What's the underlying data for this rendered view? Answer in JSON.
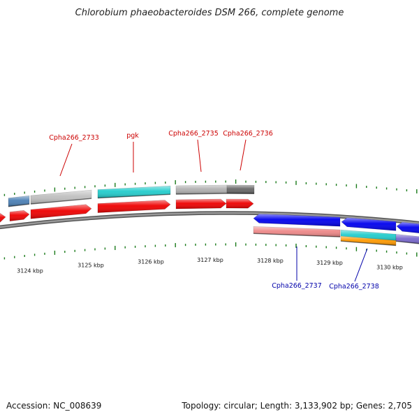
{
  "title": "Chlorobium phaeobacteroides DSM 266, complete genome",
  "footer": {
    "accession": "Accession: NC_008639",
    "summary": "Topology: circular; Length: 3,133,902 bp; Genes: 2,705"
  },
  "colors": {
    "backbone": "#7a7a7a",
    "tick": "#1a7a1a",
    "forward_label": "#cc0000",
    "reverse_label": "#0000aa",
    "cds_forward": "#ee0000",
    "cds_reverse": "#0000ee"
  },
  "axis_ticks": [
    "3124 kbp",
    "3125 kbp",
    "3126 kbp",
    "3127 kbp",
    "3128 kbp",
    "3129 kbp",
    "3130 kbp"
  ],
  "forward_labels": [
    "Cpha266_2733",
    "pgk",
    "Cpha266_2735",
    "Cpha266_2736"
  ],
  "reverse_labels": [
    "Cpha266_2737",
    "Cpha266_2738"
  ],
  "features": {
    "forward_cog": [
      {
        "color": "#4a7fb5"
      },
      {
        "color": "#c0c0c0"
      },
      {
        "color": "#22cccc"
      },
      {
        "color": "#b0b0b0"
      },
      {
        "color": "#666666"
      }
    ],
    "forward_cds": [
      {},
      {},
      {},
      {},
      {},
      {}
    ],
    "reverse_cds": [
      {},
      {},
      {}
    ],
    "reverse_cog": [
      {
        "color": "#ee8888"
      },
      {
        "color": "#22cccc"
      },
      {
        "color": "#7766cc"
      }
    ],
    "reverse_extra": [
      {
        "color": "#ff9900"
      }
    ]
  }
}
